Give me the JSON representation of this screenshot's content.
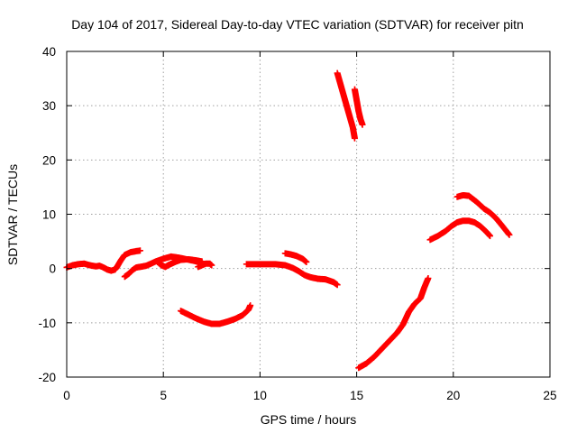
{
  "chart_data": {
    "type": "scatter",
    "title": "Day 104 of 2017, Sidereal Day-to-day VTEC variation (SDTVAR) for receiver pitn",
    "xlabel": "GPS time / hours",
    "ylabel": "SDTVAR / TECUs",
    "xlim": [
      0,
      25
    ],
    "ylim": [
      -20,
      40
    ],
    "xticks": [
      "0",
      "5",
      "10",
      "15",
      "20",
      "25"
    ],
    "yticks": [
      "-20",
      "-10",
      "0",
      "10",
      "20",
      "30",
      "40"
    ],
    "grid": true,
    "marker": "plus",
    "color": "#ff0000",
    "segments": [
      [
        [
          0.0,
          0.2
        ],
        [
          0.3,
          0.6
        ],
        [
          0.6,
          0.8
        ],
        [
          0.9,
          0.9
        ],
        [
          1.2,
          0.6
        ],
        [
          1.5,
          0.4
        ],
        [
          1.7,
          0.5
        ],
        [
          1.9,
          0.2
        ],
        [
          2.1,
          -0.2
        ],
        [
          2.3,
          -0.4
        ],
        [
          2.5,
          -0.2
        ],
        [
          2.6,
          0.3
        ]
      ],
      [
        [
          2.6,
          0.3
        ],
        [
          2.8,
          1.5
        ],
        [
          3.0,
          2.5
        ],
        [
          3.3,
          3.0
        ],
        [
          3.6,
          3.2
        ],
        [
          3.8,
          3.3
        ]
      ],
      [
        [
          3.0,
          -1.5
        ],
        [
          3.2,
          -1.0
        ],
        [
          3.4,
          -0.3
        ],
        [
          3.6,
          0.2
        ],
        [
          3.8,
          0.3
        ],
        [
          4.1,
          0.5
        ],
        [
          4.3,
          0.8
        ],
        [
          4.6,
          1.3
        ],
        [
          5.0,
          1.8
        ],
        [
          5.4,
          2.2
        ],
        [
          5.8,
          2.0
        ],
        [
          6.2,
          1.7
        ],
        [
          6.6,
          1.4
        ],
        [
          6.8,
          1.2
        ]
      ],
      [
        [
          4.7,
          1.2
        ],
        [
          4.9,
          0.6
        ],
        [
          5.1,
          0.3
        ],
        [
          5.3,
          0.7
        ],
        [
          5.6,
          1.2
        ],
        [
          5.9,
          1.6
        ],
        [
          6.3,
          1.7
        ],
        [
          6.7,
          1.5
        ],
        [
          7.0,
          1.3
        ]
      ],
      [
        [
          6.8,
          0.3
        ],
        [
          7.0,
          0.6
        ],
        [
          7.2,
          0.9
        ],
        [
          7.4,
          0.9
        ],
        [
          7.5,
          0.6
        ]
      ],
      [
        [
          5.9,
          -7.8
        ],
        [
          6.3,
          -8.5
        ],
        [
          6.7,
          -9.2
        ],
        [
          7.1,
          -9.8
        ],
        [
          7.5,
          -10.2
        ],
        [
          7.9,
          -10.2
        ],
        [
          8.3,
          -9.8
        ],
        [
          8.7,
          -9.3
        ],
        [
          9.1,
          -8.6
        ],
        [
          9.4,
          -7.6
        ],
        [
          9.5,
          -6.8
        ]
      ],
      [
        [
          9.3,
          0.8
        ],
        [
          9.8,
          0.8
        ],
        [
          10.3,
          0.8
        ],
        [
          10.8,
          0.8
        ],
        [
          11.3,
          0.6
        ],
        [
          11.7,
          0.1
        ],
        [
          12.0,
          -0.5
        ],
        [
          12.3,
          -1.2
        ],
        [
          12.6,
          -1.6
        ],
        [
          13.0,
          -1.9
        ],
        [
          13.4,
          -2.0
        ],
        [
          13.8,
          -2.5
        ],
        [
          14.0,
          -3.0
        ]
      ],
      [
        [
          11.3,
          2.8
        ],
        [
          11.6,
          2.6
        ],
        [
          11.9,
          2.3
        ],
        [
          12.2,
          1.8
        ],
        [
          12.4,
          1.2
        ]
      ],
      [
        [
          14.0,
          36.0
        ],
        [
          14.2,
          33.5
        ],
        [
          14.4,
          31.0
        ],
        [
          14.6,
          28.5
        ],
        [
          14.8,
          26.0
        ],
        [
          14.9,
          24.0
        ]
      ],
      [
        [
          14.9,
          33.0
        ],
        [
          15.0,
          31.0
        ],
        [
          15.1,
          29.0
        ],
        [
          15.2,
          27.5
        ],
        [
          15.3,
          26.5
        ]
      ],
      [
        [
          15.1,
          -18.3
        ],
        [
          15.5,
          -17.5
        ],
        [
          15.9,
          -16.3
        ],
        [
          16.3,
          -14.8
        ],
        [
          16.7,
          -13.3
        ],
        [
          17.1,
          -11.8
        ],
        [
          17.4,
          -10.3
        ],
        [
          17.7,
          -8.0
        ],
        [
          18.0,
          -6.5
        ],
        [
          18.3,
          -5.5
        ],
        [
          18.5,
          -3.5
        ],
        [
          18.7,
          -1.8
        ]
      ],
      [
        [
          18.8,
          5.3
        ],
        [
          19.2,
          6.0
        ],
        [
          19.6,
          6.9
        ],
        [
          19.9,
          7.8
        ],
        [
          20.2,
          8.5
        ],
        [
          20.5,
          8.8
        ],
        [
          20.8,
          8.8
        ],
        [
          21.1,
          8.5
        ],
        [
          21.4,
          7.8
        ],
        [
          21.7,
          6.8
        ],
        [
          21.9,
          6.0
        ]
      ],
      [
        [
          20.2,
          13.2
        ],
        [
          20.5,
          13.5
        ],
        [
          20.8,
          13.4
        ],
        [
          21.2,
          12.3
        ],
        [
          21.6,
          11.0
        ],
        [
          21.9,
          10.3
        ],
        [
          22.2,
          9.3
        ],
        [
          22.5,
          8.0
        ],
        [
          22.9,
          6.2
        ]
      ]
    ]
  }
}
